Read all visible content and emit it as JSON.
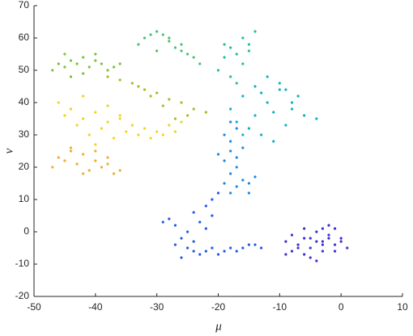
{
  "chart_data": {
    "type": "scatter",
    "xlabel": "μ",
    "ylabel": "ν",
    "xlim": [
      -50,
      10
    ],
    "xticks": [
      -50,
      -40,
      -30,
      -20,
      -10,
      0,
      10
    ],
    "ylim": [
      -20,
      70
    ],
    "yticks": [
      -20,
      -10,
      0,
      10,
      20,
      30,
      40,
      50,
      60,
      70
    ],
    "series": [
      {
        "color": "#3c2fd0",
        "x": [
          -9,
          -8,
          -7,
          -6,
          -5,
          -4,
          -3,
          -2,
          -1,
          0,
          1,
          -8,
          -6,
          -5,
          -4,
          -3,
          -2,
          -1,
          -7,
          -5,
          -3,
          -2,
          -4,
          -6,
          -9,
          -1,
          0,
          -3
        ],
        "y": [
          -3,
          -6,
          -4,
          -2,
          -5,
          -3,
          -4,
          -2,
          -6,
          -3,
          -5,
          -1,
          -7,
          -8,
          0,
          1,
          -1,
          -4,
          -5,
          -2,
          -6,
          2,
          -9,
          1,
          -7,
          1,
          -2,
          -3
        ]
      },
      {
        "color": "#2458e6",
        "x": [
          -29,
          -28,
          -27,
          -26,
          -25,
          -24,
          -23,
          -22,
          -21,
          -20,
          -19,
          -18,
          -17,
          -16,
          -15,
          -14,
          -13,
          -26,
          -24,
          -22,
          -21,
          -23,
          -22,
          -21,
          -20,
          -24,
          -27,
          -25
        ],
        "y": [
          3,
          4,
          2,
          -2,
          -5,
          -6,
          -7,
          -6,
          -5,
          -7,
          -6,
          -5,
          -6,
          -5,
          -4,
          -4,
          -5,
          -8,
          -3,
          1,
          5,
          3,
          8,
          10,
          12,
          6,
          -4,
          0
        ]
      },
      {
        "color": "#1e88e0",
        "x": [
          -19,
          -18,
          -17,
          -16,
          -15,
          -14,
          -19,
          -18,
          -17,
          -18,
          -19,
          -17,
          -16,
          -20,
          -18,
          -15,
          -17,
          -18
        ],
        "y": [
          15,
          18,
          14,
          16,
          12,
          17,
          22,
          25,
          20,
          28,
          30,
          32,
          26,
          24,
          34,
          15,
          23,
          12
        ]
      },
      {
        "color": "#12b0c8",
        "x": [
          -18,
          -16,
          -14,
          -12,
          -10,
          -8,
          -6,
          -4,
          -17,
          -15,
          -13,
          -11,
          -9,
          -7,
          -12,
          -10,
          -14,
          -8,
          -13,
          -11,
          -16,
          -9
        ],
        "y": [
          38,
          42,
          45,
          40,
          44,
          38,
          36,
          35,
          34,
          32,
          30,
          28,
          33,
          42,
          48,
          46,
          36,
          40,
          43,
          37,
          30,
          44
        ]
      },
      {
        "color": "#1fbfa0",
        "x": [
          -20,
          -19,
          -18,
          -17,
          -16,
          -15,
          -14,
          -18,
          -16,
          -15,
          -17,
          -19
        ],
        "y": [
          50,
          54,
          57,
          55,
          60,
          58,
          62,
          48,
          52,
          56,
          46,
          58
        ]
      },
      {
        "color": "#4cc070",
        "x": [
          -33,
          -32,
          -31,
          -30,
          -29,
          -28,
          -27,
          -26,
          -25,
          -24,
          -23,
          -30,
          -28,
          -26
        ],
        "y": [
          58,
          60,
          61,
          62,
          61,
          59,
          57,
          56,
          55,
          54,
          52,
          56,
          60,
          58
        ]
      },
      {
        "color": "#7cc23c",
        "x": [
          -47,
          -46,
          -45,
          -44,
          -43,
          -42,
          -41,
          -40,
          -39,
          -38,
          -37,
          -36,
          -44,
          -42,
          -40,
          -45
        ],
        "y": [
          50,
          52,
          51,
          53,
          52,
          54,
          51,
          53,
          52,
          50,
          51,
          52,
          48,
          49,
          55,
          55
        ]
      },
      {
        "color": "#b0b820",
        "x": [
          -38,
          -36,
          -34,
          -32,
          -30,
          -28,
          -26,
          -24,
          -22,
          -33,
          -29,
          -25,
          -31,
          -27
        ],
        "y": [
          48,
          47,
          46,
          44,
          43,
          41,
          40,
          38,
          37,
          45,
          39,
          36,
          42,
          35
        ]
      },
      {
        "color": "#f2d41e",
        "x": [
          -46,
          -45,
          -44,
          -43,
          -42,
          -41,
          -40,
          -39,
          -38,
          -37,
          -36,
          -35,
          -34,
          -33,
          -32,
          -31,
          -30,
          -29,
          -28,
          -27,
          -26,
          -40,
          -38,
          -36,
          -42
        ],
        "y": [
          40,
          36,
          38,
          33,
          35,
          30,
          37,
          32,
          34,
          29,
          35,
          31,
          33,
          30,
          32,
          29,
          31,
          30,
          33,
          31,
          34,
          27,
          39,
          36,
          42
        ]
      },
      {
        "color": "#eeae34",
        "x": [
          -47,
          -46,
          -45,
          -44,
          -43,
          -42,
          -41,
          -40,
          -39,
          -38,
          -37,
          -36,
          -44,
          -42,
          -40,
          -38
        ],
        "y": [
          20,
          23,
          22,
          25,
          21,
          24,
          19,
          22,
          20,
          23,
          18,
          19,
          26,
          18,
          25,
          21
        ]
      }
    ]
  }
}
